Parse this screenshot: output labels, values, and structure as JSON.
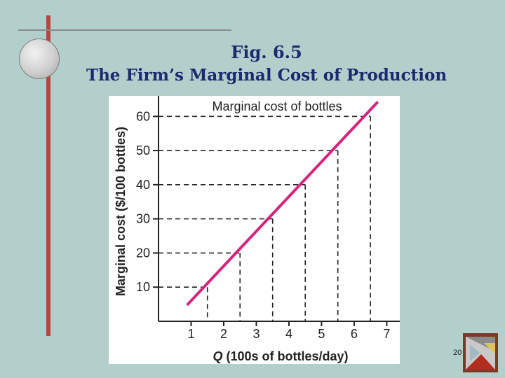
{
  "slide": {
    "title_line1": "Fig. 6.5",
    "title_line2": "The Firm’s Marginal Cost of Production",
    "page_number": "20"
  },
  "chart_data": {
    "type": "line",
    "title": "Marginal cost of bottles",
    "xlabel_bold": "Q",
    "xlabel_rest": " (100s of bottles/day)",
    "ylabel": "Marginal cost ($/100 bottles)",
    "xlim": [
      0,
      7.4
    ],
    "ylim": [
      0,
      66
    ],
    "x_ticks": [
      1,
      2,
      3,
      4,
      5,
      6,
      7
    ],
    "y_ticks": [
      10,
      20,
      30,
      40,
      50,
      60
    ],
    "series": [
      {
        "values": [
          [
            0.9,
            5
          ],
          [
            6.7,
            64
          ]
        ]
      }
    ],
    "reference_points": [
      {
        "x": 1.5,
        "y": 10
      },
      {
        "x": 2.5,
        "y": 20
      },
      {
        "x": 3.5,
        "y": 30
      },
      {
        "x": 4.5,
        "y": 40
      },
      {
        "x": 5.5,
        "y": 50
      },
      {
        "x": 6.5,
        "y": 60
      }
    ],
    "line_color": "#d6247c"
  }
}
